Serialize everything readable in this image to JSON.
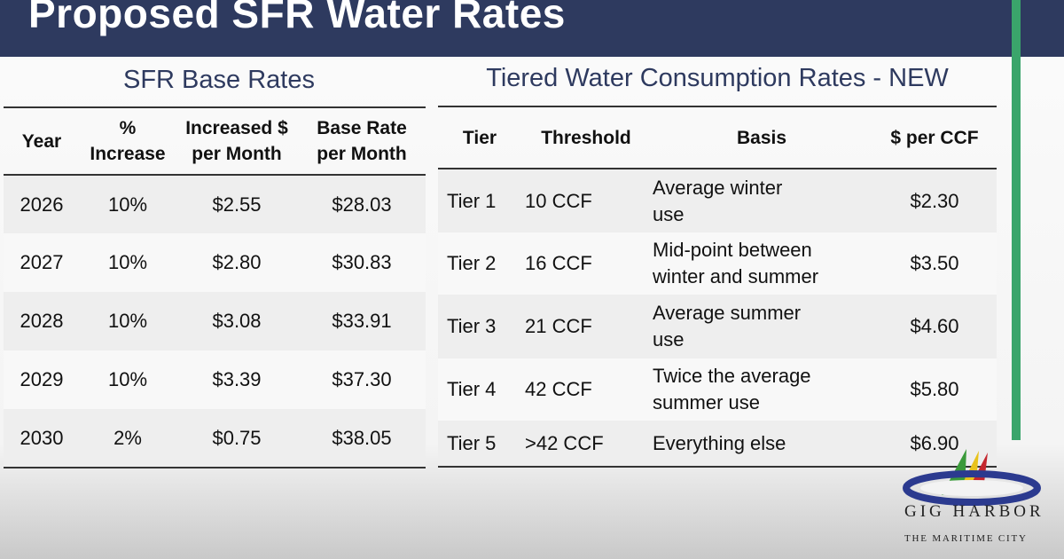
{
  "title": "Proposed SFR Water Rates",
  "colors": {
    "title_bar": "#2e3a5f",
    "accent_rule": "#3aa56b"
  },
  "base_rates": {
    "heading": "SFR Base Rates",
    "columns": [
      "Year",
      "% Increase",
      "Increased $ per Month",
      "Base Rate per Month"
    ],
    "rows": [
      {
        "year": "2026",
        "pct": "10%",
        "increase": "$2.55",
        "base": "$28.03"
      },
      {
        "year": "2027",
        "pct": "10%",
        "increase": "$2.80",
        "base": "$30.83"
      },
      {
        "year": "2028",
        "pct": "10%",
        "increase": "$3.08",
        "base": "$33.91"
      },
      {
        "year": "2029",
        "pct": "10%",
        "increase": "$3.39",
        "base": "$37.30"
      },
      {
        "year": "2030",
        "pct": "2%",
        "increase": "$0.75",
        "base": "$38.05"
      }
    ]
  },
  "tiered_rates": {
    "heading": "Tiered Water Consumption Rates - NEW",
    "columns": [
      "Tier",
      "Threshold",
      "Basis",
      "$ per CCF"
    ],
    "rows": [
      {
        "tier": "Tier 1",
        "threshold": "10 CCF",
        "basis_1": "Average winter",
        "basis_2": "use",
        "rate": "$2.30"
      },
      {
        "tier": "Tier 2",
        "threshold": "16 CCF",
        "basis_1": "Mid-point between",
        "basis_2": "winter and summer",
        "rate": "$3.50"
      },
      {
        "tier": "Tier 3",
        "threshold": "21 CCF",
        "basis_1": "Average summer",
        "basis_2": "use",
        "rate": "$4.60"
      },
      {
        "tier": "Tier 4",
        "threshold": "42 CCF",
        "basis_1": "Twice the average",
        "basis_2": "summer use",
        "rate": "$5.80"
      },
      {
        "tier": "Tier 5",
        "threshold": ">42 CCF",
        "basis_1": "Everything else",
        "basis_2": "",
        "rate": "$6.90"
      }
    ]
  },
  "logo": {
    "city": "GIG HARBOR",
    "tagline": "THE MARITIME CITY"
  }
}
